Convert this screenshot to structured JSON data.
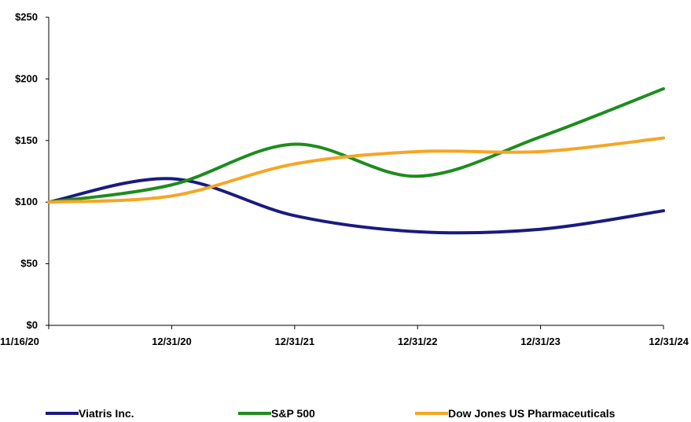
{
  "chart_data": {
    "type": "line",
    "x": [
      "11/16/20",
      "12/31/20",
      "12/31/21",
      "12/31/22",
      "12/31/23",
      "12/31/24"
    ],
    "ylim": [
      0,
      250
    ],
    "yticks": [
      0,
      50,
      100,
      150,
      200,
      250
    ],
    "ytick_labels": [
      "$0",
      "$50",
      "$100",
      "$150",
      "$200",
      "$250"
    ],
    "grid": false,
    "legend_position": "bottom",
    "series": [
      {
        "name": "Viatris Inc.",
        "color": "#1a1a80",
        "values": [
          100,
          119,
          89,
          76,
          78,
          93
        ]
      },
      {
        "name": "S&P 500",
        "color": "#1e8c1e",
        "values": [
          100,
          114,
          147,
          121,
          153,
          192
        ]
      },
      {
        "name": "Dow Jones US Pharmaceuticals",
        "color": "#f5a623",
        "values": [
          100,
          105,
          131,
          141,
          141,
          152
        ]
      }
    ]
  }
}
